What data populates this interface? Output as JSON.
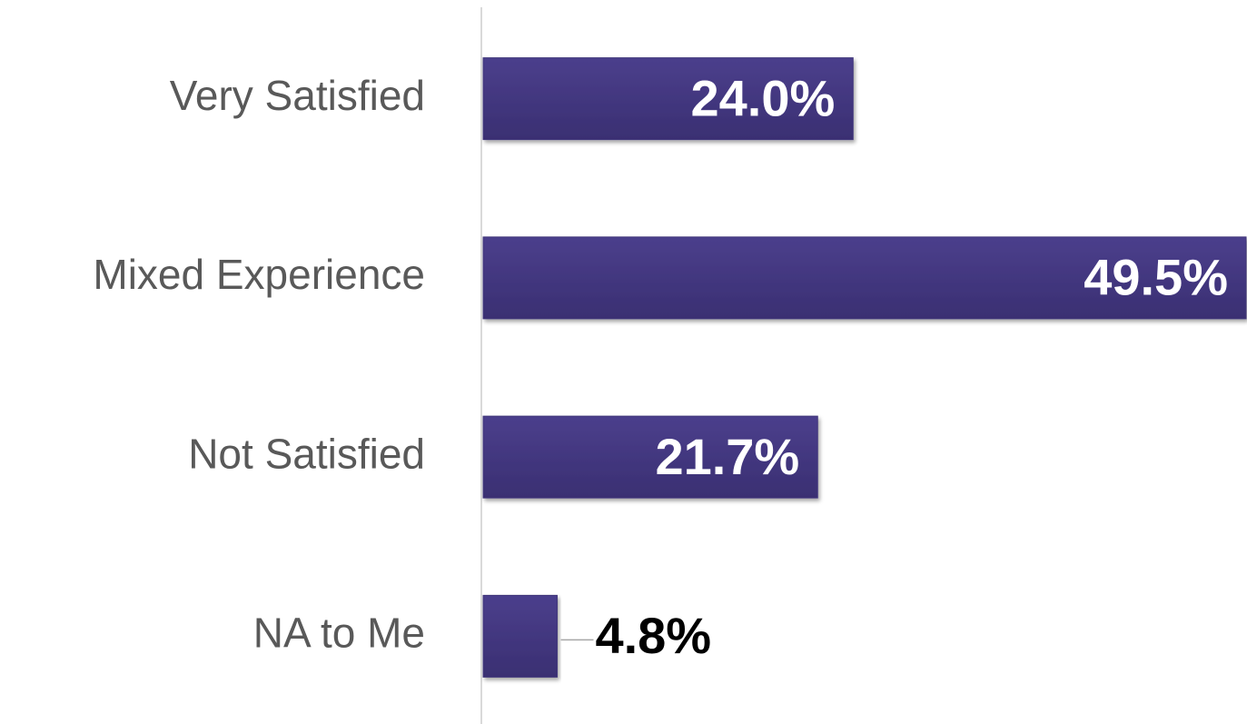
{
  "chart_data": {
    "type": "bar",
    "orientation": "horizontal",
    "categories": [
      "Very Satisfied",
      "Mixed Experience",
      "Not Satisfied",
      "NA to Me"
    ],
    "values": [
      24.0,
      49.5,
      21.7,
      4.8
    ],
    "value_labels": [
      "24.0%",
      "49.5%",
      "21.7%",
      "4.8%"
    ],
    "color": "#3f3479"
  }
}
